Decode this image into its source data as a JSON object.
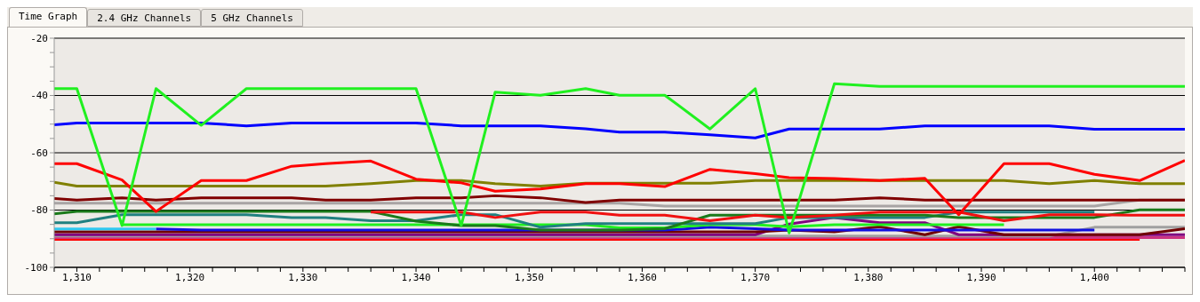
{
  "chart_data": {
    "type": "line",
    "annotations": [
      "Time Graph",
      "2.4 GHz Channels",
      "5 GHz Channels"
    ],
    "x": [
      1308,
      1310,
      1314,
      1317,
      1321,
      1325,
      1329,
      1332,
      1336,
      1340,
      1344,
      1347,
      1351,
      1355,
      1358,
      1362,
      1366,
      1370,
      1373,
      1377,
      1381,
      1385,
      1388,
      1392,
      1396,
      1400,
      1404,
      1408
    ],
    "xlim": [
      1308,
      1408
    ],
    "xticks": [
      {
        "value": 1308,
        "label": null
      },
      {
        "value": 1310,
        "label": "1,310"
      },
      {
        "value": 1312,
        "label": null
      },
      {
        "value": 1314,
        "label": null
      },
      {
        "value": 1316,
        "label": null
      },
      {
        "value": 1318,
        "label": null
      },
      {
        "value": 1320,
        "label": "1,320"
      },
      {
        "value": 1322,
        "label": null
      },
      {
        "value": 1324,
        "label": null
      },
      {
        "value": 1326,
        "label": null
      },
      {
        "value": 1328,
        "label": null
      },
      {
        "value": 1330,
        "label": "1,330"
      },
      {
        "value": 1332,
        "label": null
      },
      {
        "value": 1334,
        "label": null
      },
      {
        "value": 1336,
        "label": null
      },
      {
        "value": 1338,
        "label": null
      },
      {
        "value": 1340,
        "label": "1,340"
      },
      {
        "value": 1342,
        "label": null
      },
      {
        "value": 1344,
        "label": null
      },
      {
        "value": 1346,
        "label": null
      },
      {
        "value": 1348,
        "label": null
      },
      {
        "value": 1350,
        "label": "1,350"
      },
      {
        "value": 1352,
        "label": null
      },
      {
        "value": 1354,
        "label": null
      },
      {
        "value": 1356,
        "label": null
      },
      {
        "value": 1358,
        "label": null
      },
      {
        "value": 1360,
        "label": "1,360"
      },
      {
        "value": 1362,
        "label": null
      },
      {
        "value": 1364,
        "label": null
      },
      {
        "value": 1366,
        "label": null
      },
      {
        "value": 1368,
        "label": null
      },
      {
        "value": 1370,
        "label": "1,370"
      },
      {
        "value": 1372,
        "label": null
      },
      {
        "value": 1374,
        "label": null
      },
      {
        "value": 1376,
        "label": null
      },
      {
        "value": 1378,
        "label": null
      },
      {
        "value": 1380,
        "label": "1,380"
      },
      {
        "value": 1382,
        "label": null
      },
      {
        "value": 1384,
        "label": null
      },
      {
        "value": 1386,
        "label": null
      },
      {
        "value": 1388,
        "label": null
      },
      {
        "value": 1390,
        "label": "1,390"
      },
      {
        "value": 1392,
        "label": null
      },
      {
        "value": 1394,
        "label": null
      },
      {
        "value": 1396,
        "label": null
      },
      {
        "value": 1398,
        "label": null
      },
      {
        "value": 1400,
        "label": "1,400"
      },
      {
        "value": 1402,
        "label": null
      },
      {
        "value": 1404,
        "label": null
      },
      {
        "value": 1406,
        "label": null
      },
      {
        "value": 1408,
        "label": null
      }
    ],
    "ylim": [
      -100,
      -20
    ],
    "yticks": [
      -100,
      {
        "value": -95,
        "label": null
      },
      {
        "value": -90,
        "label": null
      },
      {
        "value": -85,
        "label": null
      },
      -80,
      {
        "value": -75,
        "label": null
      },
      {
        "value": -70,
        "label": null
      },
      {
        "value": -65,
        "label": null
      },
      -60,
      {
        "value": -55,
        "label": null
      },
      {
        "value": -50,
        "label": null
      },
      {
        "value": -45,
        "label": null
      },
      -40,
      {
        "value": -35,
        "label": null
      },
      {
        "value": -30,
        "label": null
      },
      {
        "value": -25,
        "label": null
      },
      -20
    ],
    "grid": "y",
    "marker": "none",
    "line_style": "solid",
    "series": [
      {
        "color": "#ff0000",
        "values": [
          -90.2,
          -90.2,
          -90.2,
          -90.2,
          -90.2,
          -90.2,
          -90.2,
          -90.2,
          -90.2,
          -90.2,
          -90.2,
          -90.2,
          -90.2,
          -90.2,
          -90.2,
          -90.2,
          -90.2,
          -90.2,
          -90.2,
          -90.2,
          -90.2,
          -90.2,
          -90.2,
          -90.2,
          -90.2,
          -90.2,
          -90.2,
          null
        ]
      },
      {
        "color": "#cc3380",
        "values": [
          -89.6,
          -89.6,
          -89.6,
          -89.6,
          -89.6,
          -89.6,
          -89.6,
          -89.6,
          -89.6,
          -89.6,
          -89.6,
          -89.6,
          -89.6,
          -89.6,
          -89.6,
          -89.6,
          -89.6,
          -89.6,
          -89.6,
          -89.6,
          -89.6,
          -89.6,
          -89.6,
          -89.6,
          -89.6,
          -89.6,
          -89.6,
          -89.6
        ]
      },
      {
        "color": "#a0a0a0",
        "values": [
          -89.1,
          -89.1,
          -89.1,
          -89.1,
          -89.1,
          -89.1,
          -89.1,
          -89.1,
          -89.1,
          -89.1,
          -89.1,
          -89.1,
          -89.1,
          -89.1,
          -89.1,
          -89.1,
          -89.1,
          -89.1,
          -89.1,
          -89.1,
          -89.1,
          -89.1,
          -89.1,
          -89.1,
          -89.1,
          -86,
          -86,
          -86
        ]
      },
      {
        "color": "#800080",
        "values": [
          -88.6,
          -88.6,
          -88.6,
          -88.6,
          -88.6,
          -88.6,
          -88.6,
          -88.6,
          -88.6,
          -88.6,
          -88.6,
          -88.6,
          -88.6,
          -88.6,
          -88.6,
          -88.6,
          -88.6,
          -88.6,
          -84.9,
          -82.6,
          -84.4,
          -84.4,
          -88.6,
          -88.6,
          -88.6,
          -88.6,
          -88.6,
          -88.6
        ]
      },
      {
        "color": "#700000",
        "values": [
          -87.6,
          -87.6,
          -87.6,
          -87.6,
          -87.6,
          -87.6,
          -87.6,
          -87.6,
          -87.6,
          -87.6,
          -87.6,
          -87.6,
          -87.6,
          -87.6,
          -87.6,
          -87.6,
          -87.6,
          -87.6,
          -87,
          -87.6,
          -85.8,
          -88.6,
          -85.8,
          -88.6,
          -88.6,
          -88.6,
          -88.6,
          -86.5
        ]
      },
      {
        "color": "#1010e0",
        "values": [
          null,
          null,
          null,
          -86.6,
          -87,
          -87,
          -87,
          -87,
          -87,
          -87,
          -87,
          -87,
          -87,
          -87,
          -87,
          -87,
          -86,
          -86.5,
          -87,
          -87,
          -87,
          -87,
          -87,
          -87,
          -87,
          -87,
          null,
          null
        ]
      },
      {
        "color": "#30c8f0",
        "values": [
          -86.6,
          -86.6,
          -86.6,
          -86.6,
          null,
          null,
          null,
          null,
          null,
          null,
          null,
          null,
          null,
          null,
          null,
          null,
          null,
          null,
          null,
          null,
          null,
          null,
          null,
          null,
          null,
          null,
          null,
          null
        ]
      },
      {
        "color": "#20f020",
        "values": [
          null,
          null,
          -85.1,
          -85.1,
          -85.1,
          -85.1,
          -85.1,
          -85.1,
          -85.1,
          -85.1,
          -85.1,
          -85.1,
          -85.1,
          -85.1,
          -86.2,
          -86.2,
          -85.1,
          -85.1,
          -85.8,
          -85.1,
          -85.1,
          -85.1,
          -85.1,
          -85.1,
          null,
          null,
          null,
          null
        ]
      },
      {
        "color": "#208080",
        "values": [
          -84.4,
          -84.4,
          -81.6,
          -81.6,
          -81.6,
          -81.6,
          -82.6,
          -82.6,
          -83.7,
          -83.7,
          -81.6,
          -81.6,
          -86,
          -84.7,
          -84.7,
          -84.7,
          -84.7,
          -84.7,
          -82.6,
          -82.6,
          -82.6,
          -82.6,
          -80.7,
          -80.7,
          -80.7,
          -80.7,
          null,
          null
        ]
      },
      {
        "color": "#1a7a1a",
        "values": [
          -81.3,
          -80.5,
          -80.5,
          -80.5,
          -80.5,
          -80.5,
          -80.5,
          -80.5,
          -80.5,
          -83.9,
          -85.4,
          -85.4,
          -87,
          -87,
          -87,
          -86.5,
          -81.8,
          -81.8,
          -81.8,
          -81.8,
          -81.8,
          -81.8,
          -82.6,
          -82.6,
          -82.6,
          -82.6,
          -79.9,
          -79.9
        ]
      },
      {
        "color": "#f01010",
        "values": [
          null,
          null,
          null,
          null,
          null,
          null,
          null,
          null,
          -80.7,
          -80.7,
          -80.7,
          -82.6,
          -80.7,
          -80.7,
          -81.8,
          -81.8,
          -83.7,
          -81.8,
          -82.6,
          -81.8,
          -80.7,
          -80.7,
          -80.7,
          -83.7,
          -81.6,
          -81.6,
          -81.8,
          -81.8
        ]
      },
      {
        "color": "#a8a4a4",
        "values": [
          -77.6,
          -77.6,
          -77.6,
          -77.6,
          -77.6,
          -77.6,
          -77.6,
          -77.6,
          -77.6,
          -77.6,
          -77.6,
          -77.6,
          -77.6,
          -77.6,
          -77.6,
          -78.6,
          -78.6,
          -78.6,
          -78.6,
          -78.6,
          -78.6,
          -78.6,
          -78.6,
          -78.6,
          -78.6,
          -78.6,
          -76.5,
          -76.5
        ]
      },
      {
        "color": "#800000",
        "values": [
          -76,
          -76.5,
          -75.7,
          -76.5,
          -75.7,
          -75.7,
          -75.7,
          -76.5,
          -76.5,
          -75.7,
          -75.7,
          -75,
          -75.7,
          -77.4,
          -76.5,
          -76.5,
          -76.5,
          -76.5,
          -76.5,
          -76.5,
          -75.7,
          -76.5,
          -76.5,
          -76.5,
          -76.5,
          -76.5,
          -76.5,
          -76.5
        ]
      },
      {
        "color": "#808000",
        "values": [
          -70.3,
          -71.6,
          -71.6,
          -71.6,
          -71.6,
          -71.6,
          -71.6,
          -71.6,
          -70.8,
          -69.7,
          -69.7,
          -70.8,
          -71.6,
          -70.6,
          -70.6,
          -70.6,
          -70.6,
          -69.7,
          -69.7,
          -69.7,
          -69.7,
          -69.7,
          -69.7,
          -69.7,
          -70.8,
          -69.7,
          -70.8,
          -70.8
        ]
      },
      {
        "color": "#ff0000",
        "values": [
          -63.8,
          -63.8,
          -69.5,
          -80.5,
          -69.7,
          -69.7,
          -64.7,
          -63.8,
          -62.9,
          -69.2,
          -70.5,
          -73.4,
          -72.6,
          -70.8,
          -70.8,
          -71.8,
          -65.8,
          -67.3,
          -68.7,
          -69,
          -69.7,
          -68.9,
          -81.6,
          -63.8,
          -63.8,
          -67.5,
          -69.7,
          -62.7
        ]
      },
      {
        "color": "#0000ff",
        "values": [
          -50.2,
          -49.6,
          -49.6,
          -49.6,
          -49.6,
          -50.6,
          -49.6,
          -49.6,
          -49.6,
          -49.6,
          -50.6,
          -50.6,
          -50.6,
          -51.6,
          -52.8,
          -52.8,
          -53.7,
          -54.8,
          -51.7,
          -51.7,
          -51.7,
          -50.6,
          -50.6,
          -50.6,
          -50.6,
          -51.8,
          -51.8,
          -51.8
        ]
      },
      {
        "color": "#20f020",
        "values": [
          -37.6,
          -37.6,
          -85.4,
          -37.6,
          -50.4,
          -37.6,
          -37.6,
          -37.6,
          -37.6,
          -37.6,
          -85.4,
          -38.8,
          -39.9,
          -37.6,
          -39.9,
          -39.9,
          -51.7,
          -37.6,
          -88,
          -35.9,
          -36.8,
          -36.8,
          -36.8,
          -36.8,
          -36.8,
          -36.8,
          -36.8,
          -36.8
        ]
      }
    ]
  }
}
